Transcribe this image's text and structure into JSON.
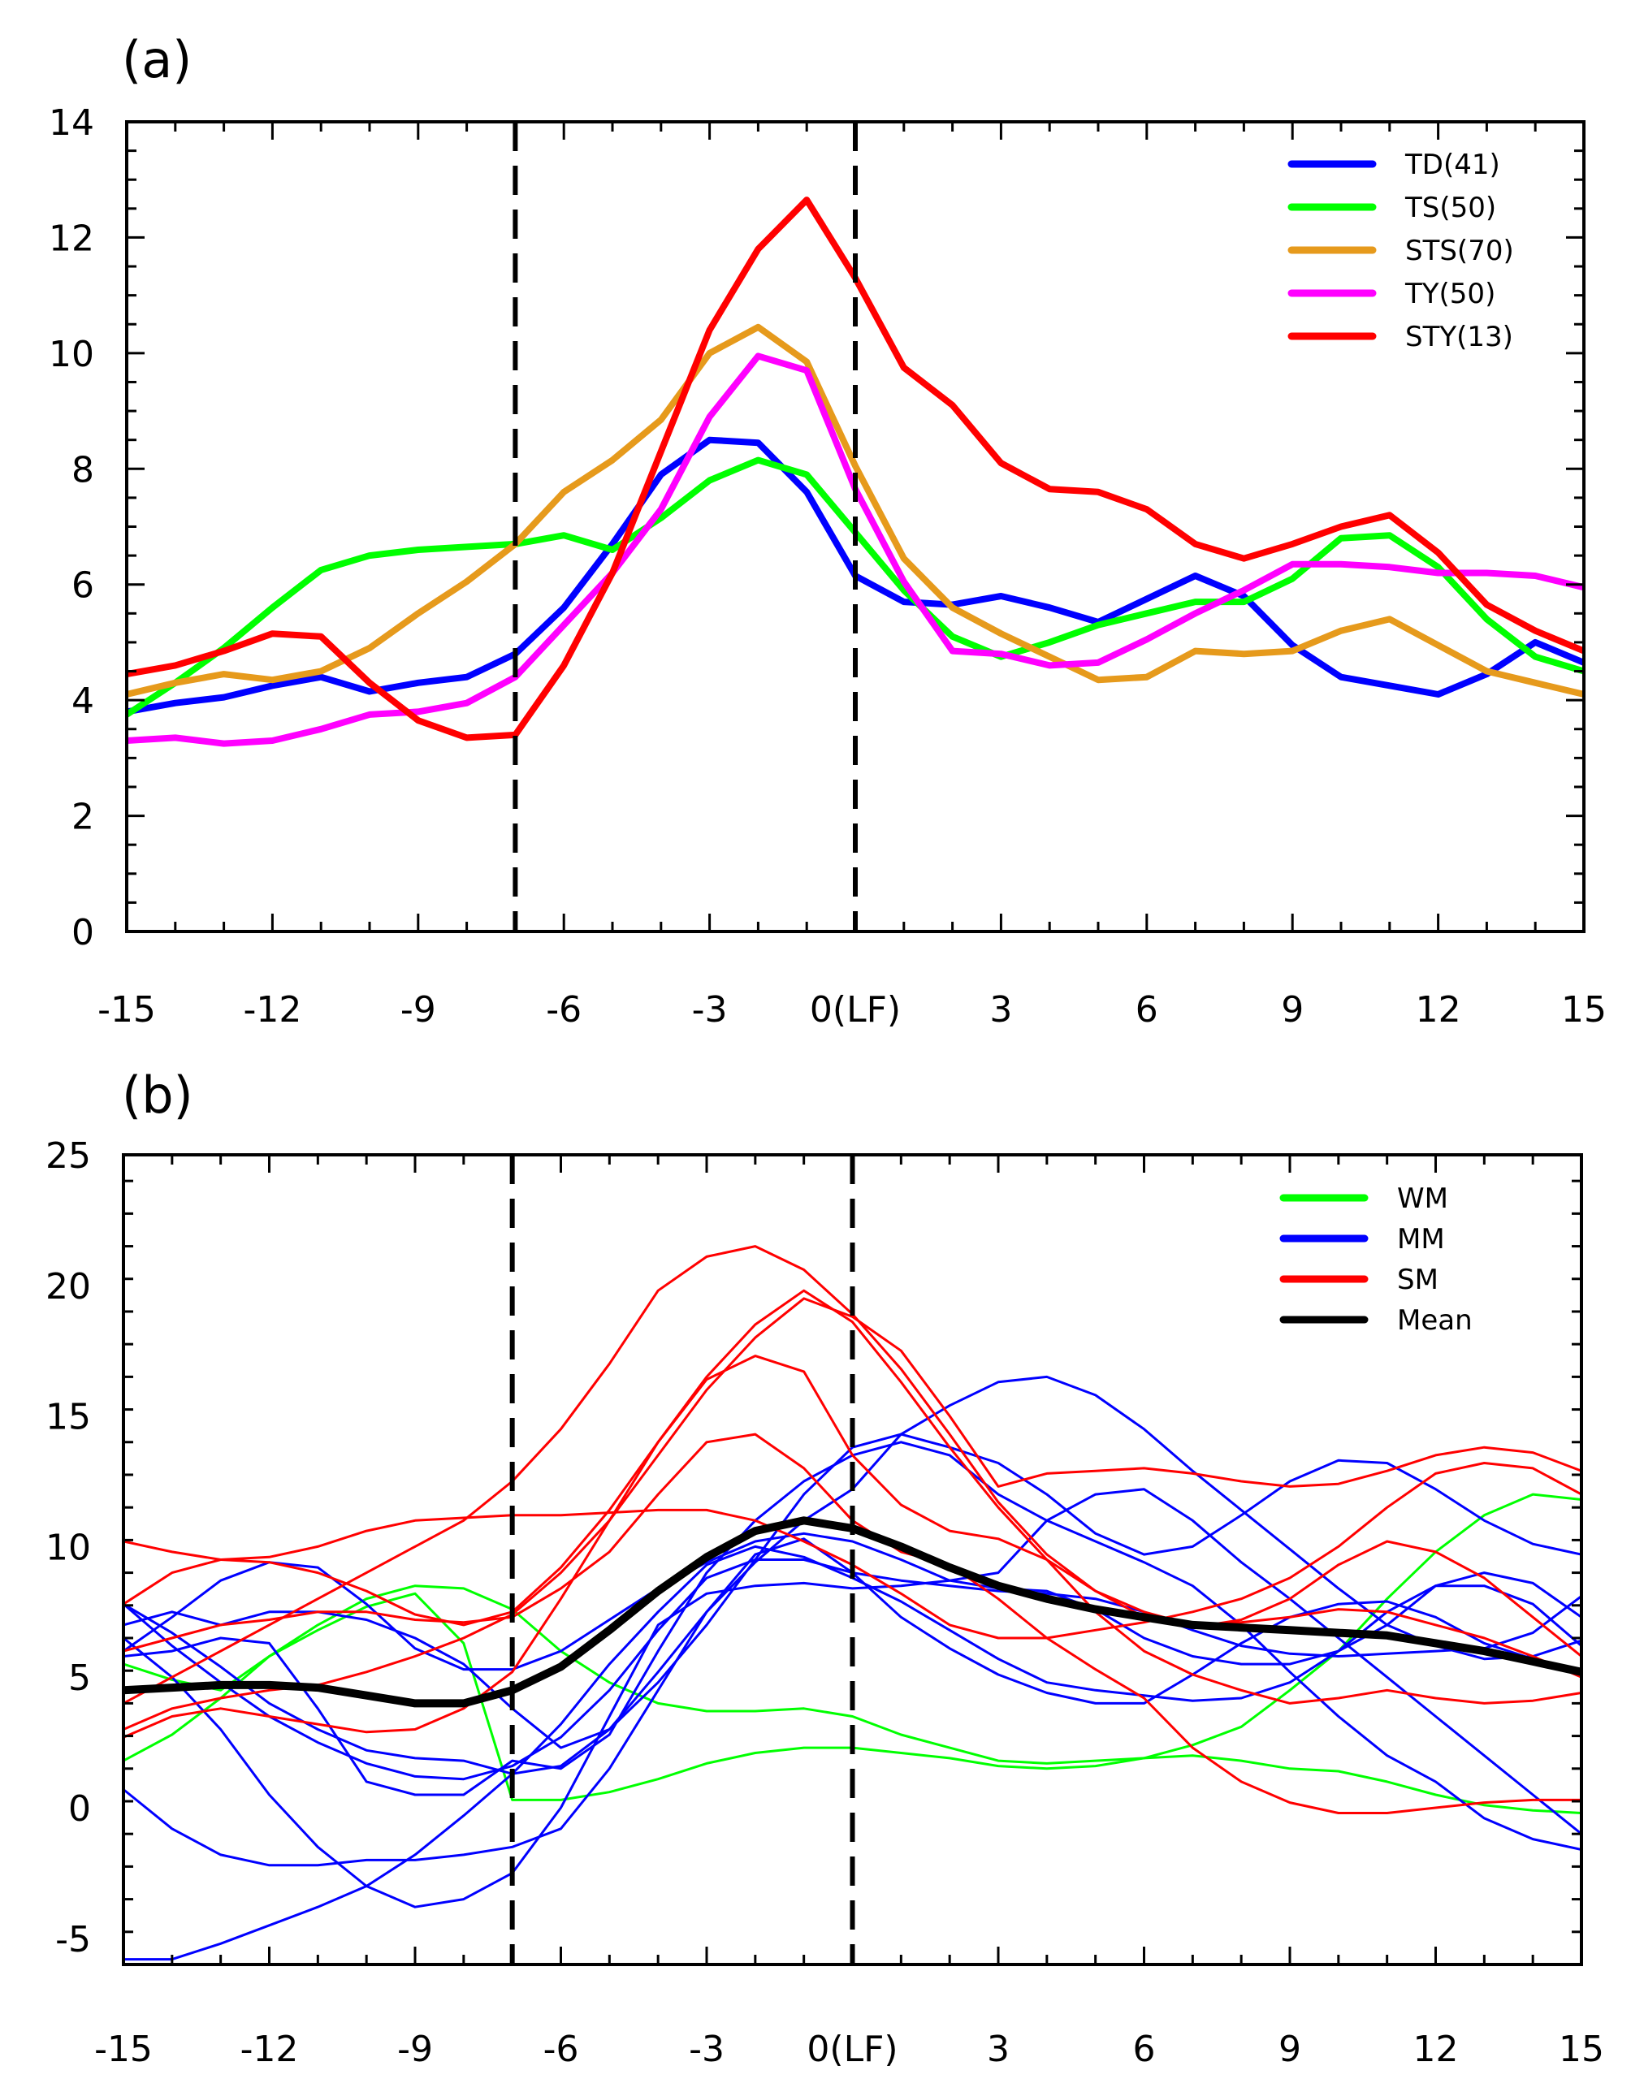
{
  "chart_data": [
    {
      "type": "line",
      "panel_label": "(a)",
      "title": "",
      "xlabel": "",
      "ylabel": "",
      "xlim": [
        -15,
        15
      ],
      "ylim": [
        0,
        14
      ],
      "x_ticks": [
        -15,
        -12,
        -9,
        -6,
        -3,
        0,
        3,
        6,
        9,
        12,
        15
      ],
      "x_tick_labels": [
        "-15",
        "-12",
        "-9",
        "-6",
        "-3",
        "0(LF)",
        "3",
        "6",
        "9",
        "12",
        "15"
      ],
      "y_ticks": [
        0,
        2,
        4,
        6,
        8,
        10,
        12,
        14
      ],
      "y_tick_labels": [
        "0",
        "2",
        "4",
        "6",
        "8",
        "10",
        "12",
        "14"
      ],
      "vlines": [
        -7,
        0
      ],
      "legend_position": "top-right",
      "x": [
        -15,
        -14,
        -13,
        -12,
        -11,
        -10,
        -9,
        -8,
        -7,
        -6,
        -5,
        -4,
        -3,
        -2,
        -1,
        0,
        1,
        2,
        3,
        4,
        5,
        6,
        7,
        8,
        9,
        10,
        11,
        12,
        13,
        14,
        15
      ],
      "series": [
        {
          "name": "TD(41)",
          "color": "#0000ff",
          "width": 8,
          "values": [
            3.8,
            3.95,
            4.05,
            4.25,
            4.4,
            4.15,
            4.3,
            4.4,
            4.8,
            5.6,
            6.7,
            7.9,
            8.5,
            8.45,
            7.6,
            6.15,
            5.7,
            5.65,
            5.8,
            5.6,
            5.35,
            5.75,
            6.15,
            5.8,
            4.95,
            4.4,
            4.25,
            4.1,
            4.45,
            5.0,
            4.65
          ]
        },
        {
          "name": "TS(50)",
          "color": "#00ff00",
          "width": 8,
          "values": [
            3.75,
            4.3,
            4.9,
            5.6,
            6.25,
            6.5,
            6.6,
            6.65,
            6.7,
            6.85,
            6.6,
            7.15,
            7.8,
            8.15,
            7.9,
            6.9,
            5.9,
            5.1,
            4.75,
            5.0,
            5.3,
            5.5,
            5.7,
            5.7,
            6.1,
            6.8,
            6.85,
            6.3,
            5.4,
            4.75,
            4.5
          ]
        },
        {
          "name": "STS(70)",
          "color": "#e69a1c",
          "width": 8,
          "values": [
            4.1,
            4.3,
            4.45,
            4.35,
            4.5,
            4.9,
            5.5,
            6.05,
            6.7,
            7.6,
            8.15,
            8.85,
            10.0,
            10.45,
            9.85,
            8.05,
            6.45,
            5.6,
            5.15,
            4.75,
            4.35,
            4.4,
            4.85,
            4.8,
            4.85,
            5.2,
            5.4,
            4.95,
            4.5,
            4.3,
            4.1
          ]
        },
        {
          "name": "TY(50)",
          "color": "#ff00ff",
          "width": 8,
          "values": [
            3.3,
            3.35,
            3.25,
            3.3,
            3.5,
            3.75,
            3.8,
            3.95,
            4.4,
            5.3,
            6.2,
            7.3,
            8.9,
            9.95,
            9.7,
            7.65,
            6.05,
            4.85,
            4.8,
            4.6,
            4.65,
            5.05,
            5.5,
            5.9,
            6.35,
            6.35,
            6.3,
            6.2,
            6.2,
            6.15,
            5.95
          ]
        },
        {
          "name": "STY(13)",
          "color": "#ff0000",
          "width": 8,
          "values": [
            4.45,
            4.6,
            4.85,
            5.15,
            5.1,
            4.3,
            3.65,
            3.35,
            3.4,
            4.6,
            6.2,
            8.3,
            10.4,
            11.8,
            12.65,
            11.3,
            9.75,
            9.1,
            8.1,
            7.65,
            7.6,
            7.3,
            6.7,
            6.45,
            6.7,
            7.0,
            7.2,
            6.55,
            5.65,
            5.2,
            4.85
          ]
        }
      ]
    },
    {
      "type": "line",
      "panel_label": "(b)",
      "title": "",
      "xlabel": "",
      "ylabel": "",
      "xlim": [
        -15,
        15
      ],
      "ylim": [
        -6,
        25
      ],
      "x_ticks": [
        -15,
        -12,
        -9,
        -6,
        -3,
        0,
        3,
        6,
        9,
        12,
        15
      ],
      "x_tick_labels": [
        "-15",
        "-12",
        "-9",
        "-6",
        "-3",
        "0(LF)",
        "3",
        "6",
        "9",
        "12",
        "15"
      ],
      "y_ticks": [
        -5,
        0,
        5,
        10,
        15,
        20,
        25
      ],
      "y_tick_labels": [
        "-5",
        "0",
        "5",
        "10",
        "15",
        "20",
        "25"
      ],
      "vlines": [
        -7,
        0
      ],
      "legend_position": "top-right",
      "legend": [
        {
          "name": "WM",
          "color": "#00ff00"
        },
        {
          "name": "MM",
          "color": "#0000ff"
        },
        {
          "name": "SM",
          "color": "#ff0000"
        },
        {
          "name": "Mean",
          "color": "#000000"
        }
      ],
      "x": [
        -15,
        -14,
        -13,
        -12,
        -11,
        -10,
        -9,
        -8,
        -7,
        -6,
        -5,
        -4,
        -3,
        -2,
        -1,
        0,
        1,
        2,
        3,
        4,
        5,
        6,
        7,
        8,
        9,
        10,
        11,
        12,
        13,
        14,
        15
      ],
      "series": [
        {
          "group": "WM",
          "color": "#00ff00",
          "width": 3,
          "values": [
            5.5,
            4.9,
            4.5,
            5.8,
            7.0,
            8.0,
            8.5,
            8.4,
            7.6,
            6.0,
            4.8,
            4.0,
            3.7,
            3.7,
            3.8,
            3.5,
            2.8,
            2.3,
            1.8,
            1.7,
            1.8,
            1.9,
            2.0,
            1.8,
            1.5,
            1.4,
            1.0,
            0.5,
            0.1,
            -0.1,
            -0.2
          ]
        },
        {
          "group": "WM",
          "color": "#00ff00",
          "width": 3,
          "values": [
            1.8,
            2.8,
            4.2,
            5.8,
            6.8,
            7.7,
            8.2,
            6.3,
            0.3,
            0.3,
            0.6,
            1.1,
            1.7,
            2.1,
            2.3,
            2.3,
            2.1,
            1.9,
            1.6,
            1.5,
            1.6,
            1.9,
            2.4,
            3.1,
            4.5,
            6.0,
            8.0,
            9.8,
            11.2,
            12.0,
            11.8
          ]
        },
        {
          "group": "MM",
          "color": "#0000ff",
          "width": 3,
          "values": [
            7.8,
            6.2,
            4.8,
            3.5,
            2.5,
            1.7,
            1.2,
            1.1,
            1.6,
            2.7,
            4.5,
            6.8,
            8.8,
            9.5,
            9.5,
            9.0,
            8.7,
            8.5,
            8.3,
            8.2,
            8.0,
            7.5,
            6.8,
            6.2,
            5.9,
            5.8,
            5.9,
            6.0,
            6.1,
            6.7,
            8.1
          ]
        },
        {
          "group": "MM",
          "color": "#0000ff",
          "width": 3,
          "values": [
            6.0,
            7.3,
            8.7,
            9.4,
            9.2,
            7.8,
            6.1,
            5.3,
            5.3,
            6.0,
            7.2,
            8.4,
            9.4,
            10.2,
            10.5,
            10.2,
            9.5,
            8.7,
            8.4,
            8.3,
            7.6,
            6.5,
            5.8,
            5.5,
            5.5,
            6.0,
            7.0,
            8.5,
            9.0,
            8.6,
            7.3
          ]
        },
        {
          "group": "MM",
          "color": "#0000ff",
          "width": 3,
          "values": [
            7.8,
            6.7,
            5.4,
            4.0,
            3.0,
            2.2,
            1.9,
            1.8,
            1.3,
            1.6,
            3.0,
            5.2,
            7.5,
            9.4,
            11.0,
            12.2,
            14.3,
            15.4,
            16.3,
            16.5,
            15.8,
            14.5,
            12.9,
            11.4,
            9.9,
            8.4,
            7.0,
            6.2,
            5.7,
            5.8,
            6.4
          ]
        },
        {
          "group": "MM",
          "color": "#0000ff",
          "width": 3,
          "values": [
            7.0,
            7.5,
            7.0,
            7.5,
            7.5,
            7.2,
            6.5,
            5.5,
            3.8,
            2.3,
            3.0,
            4.8,
            7.0,
            9.5,
            12.0,
            13.8,
            14.3,
            13.8,
            13.2,
            12.0,
            10.5,
            9.7,
            10.0,
            11.2,
            12.5,
            13.3,
            13.2,
            12.2,
            11.0,
            10.1,
            9.7
          ]
        },
        {
          "group": "MM",
          "color": "#0000ff",
          "width": 3,
          "values": [
            0.7,
            -0.8,
            -1.8,
            -2.2,
            -2.2,
            -2.0,
            -2.0,
            -1.8,
            -1.5,
            -0.8,
            1.5,
            4.5,
            7.5,
            9.7,
            10.3,
            9.0,
            7.3,
            6.1,
            5.1,
            4.4,
            4.0,
            4.0,
            5.1,
            6.3,
            7.3,
            7.8,
            7.9,
            7.3,
            6.3,
            5.7,
            5.2
          ]
        },
        {
          "group": "MM",
          "color": "#0000ff",
          "width": 3,
          "values": [
            -5.8,
            -5.8,
            -5.2,
            -4.5,
            -3.8,
            -3.0,
            -1.8,
            -0.3,
            1.3,
            3.2,
            5.5,
            7.5,
            9.3,
            10.0,
            9.6,
            8.8,
            7.9,
            6.8,
            5.7,
            4.8,
            4.5,
            4.3,
            4.1,
            4.2,
            4.8,
            6.0,
            7.5,
            8.5,
            8.5,
            7.8,
            6.2
          ]
        },
        {
          "group": "MM",
          "color": "#0000ff",
          "width": 3,
          "values": [
            5.8,
            6.0,
            6.5,
            6.3,
            3.8,
            1.0,
            0.5,
            0.5,
            1.8,
            1.5,
            2.8,
            6.0,
            9.0,
            11.0,
            12.5,
            13.5,
            14.0,
            13.5,
            12.0,
            11.0,
            10.2,
            9.4,
            8.5,
            7.0,
            5.2,
            3.5,
            2.0,
            1.0,
            -0.4,
            -1.2,
            -1.6
          ]
        },
        {
          "group": "MM",
          "color": "#0000ff",
          "width": 3,
          "values": [
            6.5,
            5.0,
            3.0,
            0.5,
            -1.5,
            -3.0,
            -3.8,
            -3.5,
            -2.5,
            0.0,
            3.5,
            7.0,
            8.2,
            8.5,
            8.6,
            8.4,
            8.5,
            8.7,
            9.0,
            11.0,
            12.0,
            12.2,
            11.0,
            9.4,
            8.0,
            6.5,
            5.0,
            3.5,
            2.0,
            0.5,
            -1.0
          ]
        },
        {
          "group": "SM",
          "color": "#ff0000",
          "width": 3,
          "values": [
            10.2,
            9.8,
            9.5,
            9.4,
            9.0,
            8.3,
            7.4,
            7.0,
            7.5,
            9.2,
            11.4,
            14.0,
            16.5,
            18.5,
            19.8,
            18.6,
            16.3,
            13.8,
            11.5,
            9.5,
            8.3,
            7.5,
            7.0,
            7.1,
            7.3,
            7.6,
            7.5,
            7.0,
            6.5,
            5.8,
            5.0
          ]
        },
        {
          "group": "SM",
          "color": "#ff0000",
          "width": 3,
          "values": [
            2.7,
            3.5,
            3.8,
            3.5,
            3.2,
            2.9,
            3.0,
            3.8,
            5.2,
            8.0,
            11.0,
            14.0,
            16.4,
            17.3,
            16.7,
            13.5,
            11.6,
            10.6,
            10.3,
            9.5,
            7.5,
            6.0,
            5.1,
            4.5,
            4.0,
            4.2,
            4.5,
            4.2,
            4.0,
            4.1,
            4.4
          ]
        },
        {
          "group": "SM",
          "color": "#ff0000",
          "width": 3,
          "values": [
            7.8,
            9.0,
            9.5,
            9.6,
            10.0,
            10.6,
            11.0,
            11.1,
            11.2,
            11.2,
            11.3,
            11.4,
            11.4,
            11.0,
            10.2,
            9.3,
            8.2,
            7.0,
            6.5,
            6.5,
            6.8,
            7.1,
            7.5,
            8.0,
            8.8,
            10.0,
            11.5,
            12.8,
            13.2,
            13.0,
            12.0
          ]
        },
        {
          "group": "SM",
          "color": "#ff0000",
          "width": 3,
          "values": [
            6.0,
            6.5,
            7.0,
            7.2,
            7.5,
            7.5,
            7.2,
            7.1,
            7.3,
            8.4,
            9.8,
            12.0,
            14.0,
            14.3,
            13.0,
            11.0,
            9.8,
            9.3,
            8.0,
            6.5,
            5.3,
            4.2,
            2.3,
            1.0,
            0.2,
            -0.2,
            -0.2,
            0.0,
            0.2,
            0.3,
            0.3
          ]
        },
        {
          "group": "SM",
          "color": "#ff0000",
          "width": 3,
          "values": [
            3.0,
            3.8,
            4.2,
            4.5,
            4.7,
            5.2,
            5.8,
            6.5,
            7.4,
            9.0,
            11.0,
            13.5,
            16.0,
            18.0,
            19.5,
            18.8,
            17.5,
            15.0,
            12.3,
            12.8,
            12.9,
            13.0,
            12.8,
            12.5,
            12.3,
            12.4,
            12.9,
            13.5,
            13.8,
            13.6,
            12.9
          ]
        },
        {
          "group": "SM",
          "color": "#ff0000",
          "width": 3,
          "values": [
            4.0,
            5.0,
            6.0,
            7.0,
            8.0,
            9.0,
            10.0,
            11.0,
            12.5,
            14.5,
            17.0,
            19.8,
            21.1,
            21.5,
            20.6,
            18.9,
            16.8,
            14.3,
            11.7,
            9.7,
            8.3,
            7.3,
            6.9,
            7.2,
            8.0,
            9.3,
            10.2,
            9.8,
            8.8,
            7.3,
            5.8
          ]
        },
        {
          "group": "Mean",
          "color": "#000000",
          "width": 10,
          "values": [
            4.5,
            4.6,
            4.7,
            4.7,
            4.6,
            4.3,
            4.0,
            4.0,
            4.5,
            5.4,
            6.8,
            8.3,
            9.6,
            10.6,
            11.0,
            10.7,
            10.0,
            9.2,
            8.5,
            8.0,
            7.6,
            7.3,
            7.0,
            6.9,
            6.8,
            6.7,
            6.6,
            6.3,
            6.0,
            5.6,
            5.2
          ]
        }
      ]
    }
  ]
}
